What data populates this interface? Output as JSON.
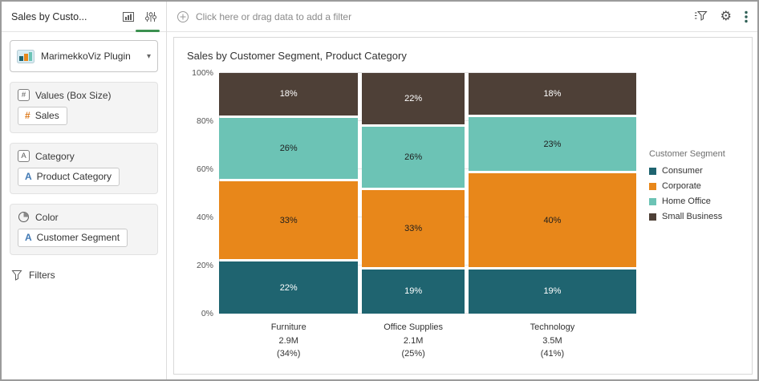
{
  "sidebar": {
    "title": "Sales by Custo...",
    "plugin_selector": {
      "value": "MarimekkoViz Plugin"
    },
    "sections": [
      {
        "label": "Values (Box Size)",
        "chip": {
          "icon": "#",
          "label": "Sales"
        }
      },
      {
        "label": "Category",
        "chip": {
          "icon": "A",
          "label": "Product Category"
        }
      },
      {
        "label": "Color",
        "chip": {
          "icon": "A",
          "label": "Customer Segment"
        }
      }
    ],
    "filters_label": "Filters"
  },
  "filter_bar": {
    "prompt": "Click here or drag data to add a filter"
  },
  "colors": {
    "measure_icon": "#dd7a1c",
    "attribute_icon": "#4179b4",
    "active_tab_underline": "#3c9150",
    "kebab_icon": "#2e5f55"
  },
  "chart_data": {
    "type": "marimekko",
    "title": "Sales by Customer Segment, Product Category",
    "legend_title": "Customer Segment",
    "categories": [
      "Furniture",
      "Office Supplies",
      "Technology"
    ],
    "category_totals": [
      "2.9M",
      "2.1M",
      "3.5M"
    ],
    "category_shares": [
      "(34%)",
      "(25%)",
      "(41%)"
    ],
    "column_widths_pct": [
      34,
      25,
      41
    ],
    "ylim": [
      0,
      100
    ],
    "yticks": [
      "0%",
      "20%",
      "40%",
      "60%",
      "80%",
      "100%"
    ],
    "grid": true,
    "legend_position": "right",
    "series": [
      {
        "name": "Consumer",
        "color": "#1f6470",
        "label_color": "#ffffff",
        "values": [
          22,
          19,
          19
        ]
      },
      {
        "name": "Corporate",
        "color": "#e8871a",
        "label_color": "#1e1e1e",
        "values": [
          33,
          33,
          40
        ]
      },
      {
        "name": "Home Office",
        "color": "#6cc3b5",
        "label_color": "#1e1e1e",
        "values": [
          26,
          26,
          23
        ]
      },
      {
        "name": "Small Business",
        "color": "#4e4037",
        "label_color": "#ffffff",
        "values": [
          18,
          22,
          18
        ]
      }
    ]
  }
}
